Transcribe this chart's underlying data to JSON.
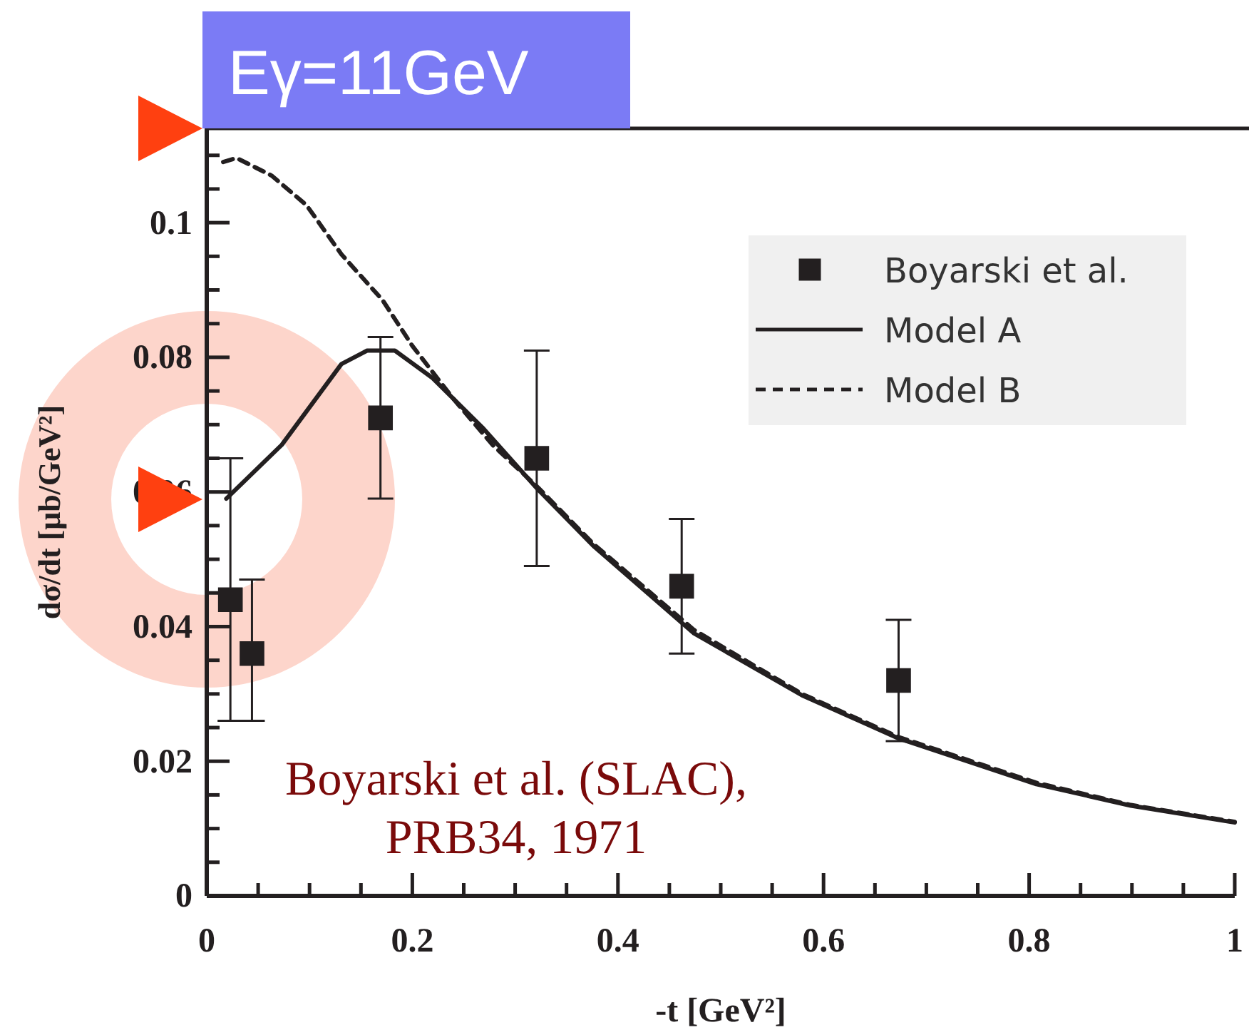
{
  "chart_data": {
    "type": "line",
    "title": "Eγ=11GeV",
    "xlabel": "-t [GeV²]",
    "ylabel": "dσ/dt [μb/GeV²]",
    "xlim": [
      0,
      1
    ],
    "ylim": [
      0,
      0.114
    ],
    "xticks": [
      0,
      {
        "value": 0.05,
        "label": null
      },
      0.2,
      {
        "value": 0.1,
        "label": null
      },
      {
        "value": 0.15,
        "label": null
      },
      {
        "value": 0.25,
        "label": null
      },
      {
        "value": 0.3,
        "label": null
      },
      {
        "value": 0.35,
        "label": null
      },
      0.4,
      {
        "value": 0.45,
        "label": null
      },
      {
        "value": 0.5,
        "label": null
      },
      {
        "value": 0.55,
        "label": null
      },
      0.6,
      {
        "value": 0.65,
        "label": null
      },
      {
        "value": 0.7,
        "label": null
      },
      {
        "value": 0.75,
        "label": null
      },
      0.8,
      {
        "value": 0.85,
        "label": null
      },
      {
        "value": 0.9,
        "label": null
      },
      {
        "value": 0.95,
        "label": null
      },
      1
    ],
    "yticks": [
      0,
      {
        "value": 0.005,
        "label": null
      },
      {
        "value": 0.01,
        "label": null
      },
      {
        "value": 0.015,
        "label": null
      },
      0.02,
      {
        "value": 0.025,
        "label": null
      },
      {
        "value": 0.03,
        "label": null
      },
      {
        "value": 0.035,
        "label": null
      },
      0.04,
      {
        "value": 0.045,
        "label": null
      },
      {
        "value": 0.05,
        "label": null
      },
      {
        "value": 0.055,
        "label": null
      },
      0.06,
      {
        "value": 0.065,
        "label": null
      },
      {
        "value": 0.07,
        "label": null
      },
      {
        "value": 0.075,
        "label": null
      },
      0.08,
      {
        "value": 0.085,
        "label": null
      },
      {
        "value": 0.09,
        "label": null
      },
      {
        "value": 0.095,
        "label": null
      },
      0.1,
      {
        "value": 0.105,
        "label": null
      },
      {
        "value": 0.11,
        "label": null
      }
    ],
    "grid": false,
    "legend": "top right",
    "annotations": [
      "Boyarski et al. (SLAC),\nPRB34, 1971"
    ],
    "series": [
      {
        "name": "Boyarski et al.",
        "type": "scatter",
        "marker": "square",
        "color": "#231f20",
        "x": [
          0.023,
          0.044,
          0.169,
          0.321,
          0.462,
          0.673
        ],
        "values": [
          0.044,
          0.036,
          0.071,
          0.065,
          0.046,
          0.032
        ],
        "errors": [
          [
            0.026,
            0.065
          ],
          [
            0.026,
            0.047
          ],
          [
            0.059,
            0.083
          ],
          [
            0.049,
            0.081
          ],
          [
            0.036,
            0.056
          ],
          [
            0.023,
            0.041
          ]
        ]
      },
      {
        "name": "Model A",
        "line_style": "solid",
        "color": "#231f20",
        "x": [
          0.019,
          0.073,
          0.131,
          0.156,
          0.183,
          0.219,
          0.268,
          0.322,
          0.376,
          0.474,
          0.579,
          0.673,
          0.807,
          0.899,
          1.0
        ],
        "values": [
          0.059,
          0.067,
          0.079,
          0.081,
          0.081,
          0.077,
          0.0696,
          0.0604,
          0.052,
          0.039,
          0.0298,
          0.0234,
          0.0166,
          0.0134,
          0.0109
        ]
      },
      {
        "name": "Model B",
        "line_style": "dashed",
        "color": "#231f20",
        "x": [
          0.016,
          0.029,
          0.063,
          0.097,
          0.131,
          0.171,
          0.2,
          0.239,
          0.278,
          0.322,
          0.376,
          0.474,
          0.579,
          0.673,
          0.807,
          0.899,
          1.0
        ],
        "values": [
          0.109,
          0.1096,
          0.107,
          0.1026,
          0.0953,
          0.0885,
          0.0817,
          0.074,
          0.067,
          0.0607,
          0.0523,
          0.0395,
          0.03,
          0.0236,
          0.0168,
          0.0135,
          0.011
        ]
      }
    ]
  }
}
